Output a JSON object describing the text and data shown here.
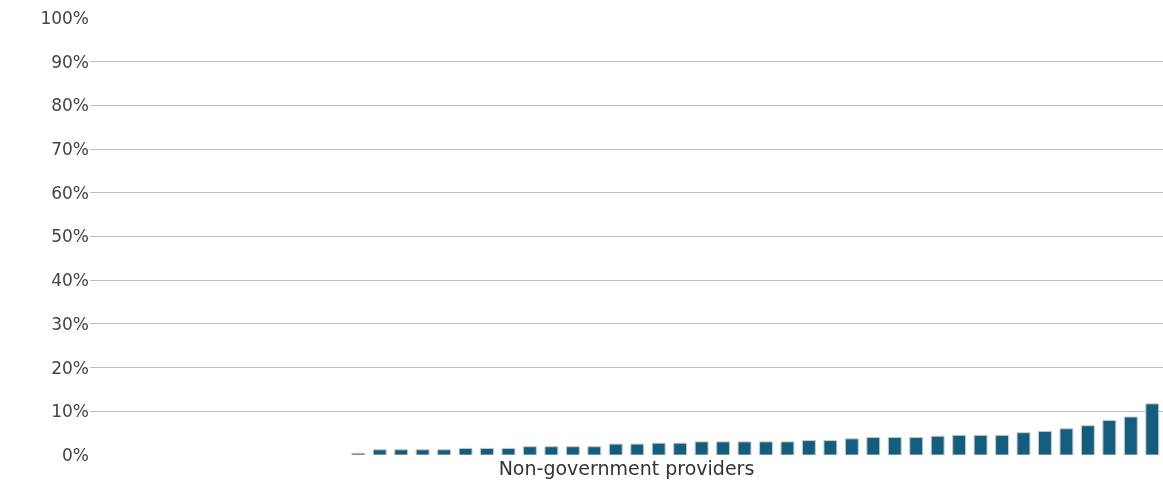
{
  "chart_data": {
    "type": "bar",
    "xlabel": "Non-government providers",
    "categories": [
      null,
      null,
      null,
      null,
      null,
      null,
      null,
      null,
      null,
      null,
      null,
      null,
      null,
      null,
      null,
      null,
      null,
      null,
      null,
      null,
      null,
      null,
      null,
      null,
      null,
      null,
      null,
      null,
      null,
      null,
      null,
      null,
      null,
      null,
      null,
      null,
      null,
      null,
      null,
      null,
      null,
      null,
      null,
      null,
      null,
      null,
      null,
      null,
      null,
      null
    ],
    "values": [
      null,
      null,
      null,
      null,
      null,
      null,
      null,
      null,
      null,
      null,
      null,
      null,
      0.4,
      1.2,
      1.2,
      1.2,
      1.2,
      1.5,
      1.5,
      1.5,
      1.9,
      1.9,
      1.9,
      1.9,
      2.5,
      2.5,
      2.7,
      2.7,
      3.0,
      3.0,
      3.0,
      3.0,
      3.0,
      3.3,
      3.3,
      3.7,
      4.0,
      4.0,
      4.0,
      4.3,
      4.5,
      4.5,
      4.5,
      5.1,
      5.4,
      6.0,
      6.7,
      7.9,
      8.7,
      11.7
    ],
    "color": "#135e7e",
    "ylim": [
      0,
      100
    ],
    "yticks": [
      {
        "value": 0,
        "label": "0%"
      },
      {
        "value": 10,
        "label": "10%"
      },
      {
        "value": 20,
        "label": "20%"
      },
      {
        "value": 30,
        "label": "30%"
      },
      {
        "value": 40,
        "label": "40%"
      },
      {
        "value": 50,
        "label": "50%"
      },
      {
        "value": 60,
        "label": "60%"
      },
      {
        "value": 70,
        "label": "70%"
      },
      {
        "value": 80,
        "label": "80%"
      },
      {
        "value": 90,
        "label": "90%"
      },
      {
        "value": 100,
        "label": "100%"
      }
    ],
    "grid": "y",
    "tick_labels": "y"
  }
}
